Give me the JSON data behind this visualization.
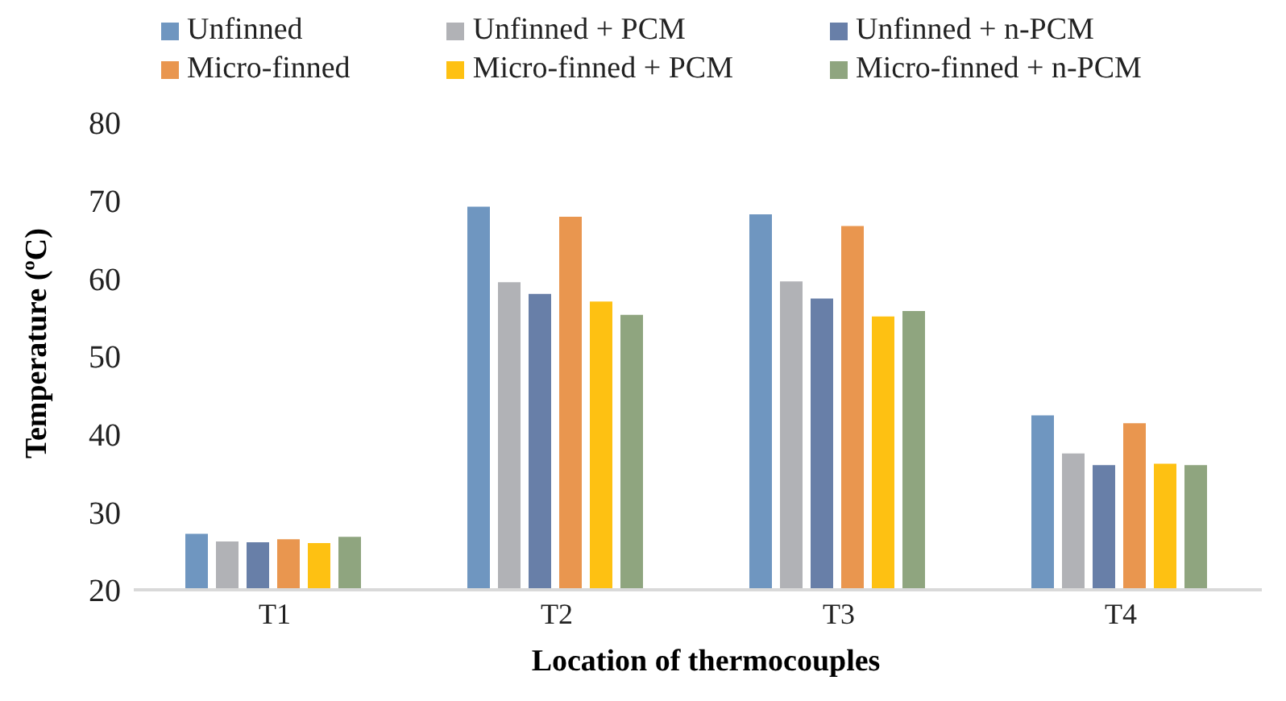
{
  "chart_data": {
    "type": "bar",
    "xlabel": "Location of thermocouples",
    "ylabel": "Temperature (ºC)",
    "categories": [
      "T1",
      "T2",
      "T3",
      "T4"
    ],
    "series": [
      {
        "name": "Unfinned",
        "color": "#6f96c0",
        "values": [
          27.3,
          69.3,
          68.3,
          42.5
        ]
      },
      {
        "name": "Unfinned + PCM",
        "color": "#b1b2b6",
        "values": [
          26.3,
          59.6,
          59.7,
          37.6
        ]
      },
      {
        "name": "Unfinned + n-PCM",
        "color": "#687fa8",
        "values": [
          26.2,
          58.1,
          57.5,
          36.1
        ]
      },
      {
        "name": "Micro-finned",
        "color": "#e9964f",
        "values": [
          26.6,
          68.0,
          66.8,
          41.5
        ]
      },
      {
        "name": "Micro-finned + PCM",
        "color": "#fec112",
        "values": [
          26.1,
          57.1,
          55.2,
          36.3
        ]
      },
      {
        "name": "Micro-finned + n-PCM",
        "color": "#8fa57f",
        "values": [
          26.9,
          55.4,
          55.9,
          36.1
        ]
      }
    ],
    "ylim": [
      20,
      80
    ],
    "yticks": [
      20,
      30,
      40,
      50,
      60,
      70,
      80
    ],
    "grid": false,
    "legend": "top"
  }
}
